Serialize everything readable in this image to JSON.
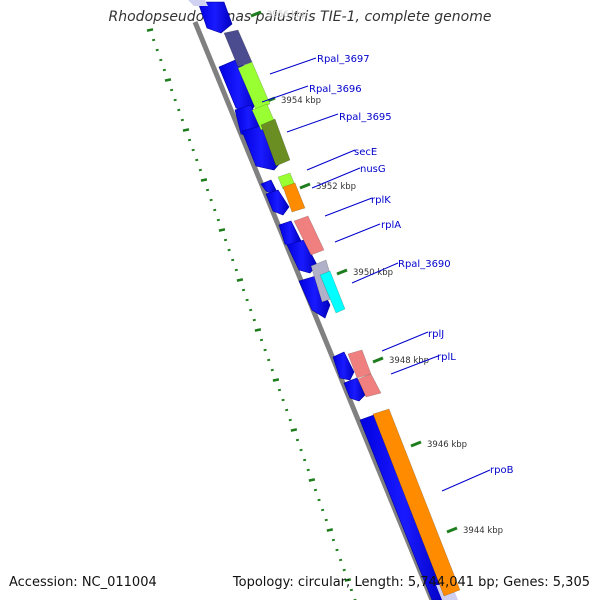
{
  "title": "Rhodopseudomonas palustris TIE-1, complete genome",
  "footer": {
    "accession": "Accession: NC_011004",
    "summary": "Topology: circular; Length: 5,744,041 bp; Genes: 5,305"
  },
  "colors": {
    "backbone": "#808080",
    "gene_blue": "#0000ff",
    "tick": "#1e7e1e",
    "label": "#0000cc",
    "purple": "#4b4b8f",
    "lime": "#99ff33",
    "olive": "#6b8e23",
    "orange": "#ff8c00",
    "salmon": "#f08080",
    "cyan": "#00ffff",
    "lavender": "#d0d0f0"
  },
  "diagram": {
    "ticks": [
      {
        "label": "3956 kbp",
        "faded": true
      },
      {
        "label": "3954 kbp"
      },
      {
        "label": "3952 kbp"
      },
      {
        "label": "3950 kbp"
      },
      {
        "label": "3948 kbp"
      },
      {
        "label": "3946 kbp"
      },
      {
        "label": "3944 kbp"
      }
    ],
    "genes": [
      {
        "label": "Rpal_3697"
      },
      {
        "label": "Rpal_3696"
      },
      {
        "label": "Rpal_3695"
      },
      {
        "label": "secE"
      },
      {
        "label": "nusG"
      },
      {
        "label": "rplK"
      },
      {
        "label": "rplA"
      },
      {
        "label": "Rpal_3690"
      },
      {
        "label": "rplJ"
      },
      {
        "label": "rplL"
      },
      {
        "label": "rpoB"
      }
    ]
  }
}
